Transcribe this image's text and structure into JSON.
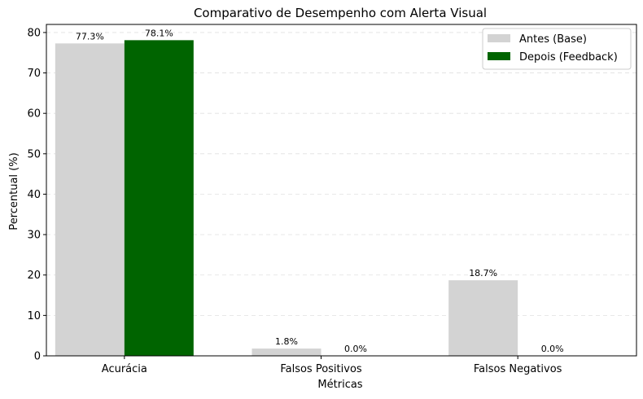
{
  "chart_data": {
    "type": "bar",
    "title": "Comparativo de Desempenho com Alerta Visual",
    "xlabel": "Métricas",
    "ylabel": "Percentual (%)",
    "categories": [
      "Acurácia",
      "Falsos Positivos",
      "Falsos Negativos"
    ],
    "series": [
      {
        "name": "Antes (Base)",
        "color": "#d3d3d3",
        "values": [
          77.3,
          1.8,
          18.7
        ],
        "labels": [
          "77.3%",
          "1.8%",
          "18.7%"
        ]
      },
      {
        "name": "Depois (Feedback)",
        "color": "#006400",
        "values": [
          78.1,
          0.0,
          0.0
        ],
        "labels": [
          "78.1%",
          "0.0%",
          "0.0%"
        ]
      }
    ],
    "ylim": [
      0,
      82
    ],
    "yticks": [
      0,
      10,
      20,
      30,
      40,
      50,
      60,
      70,
      80
    ],
    "grid": "y-dashed",
    "legend_position": "top-right"
  }
}
